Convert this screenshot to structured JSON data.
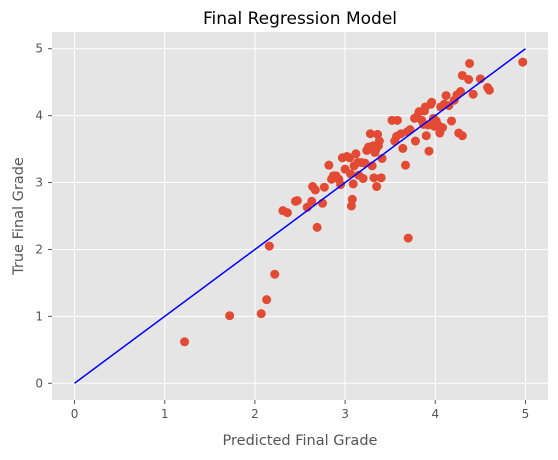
{
  "chart_data": {
    "type": "scatter",
    "title": "Final Regression Model",
    "xlabel": "Predicted Final Grade",
    "ylabel": "True Final Grade",
    "xlim": [
      -0.25,
      5.25
    ],
    "ylim": [
      -0.25,
      5.25
    ],
    "x_ticks": [
      0,
      1,
      2,
      3,
      4,
      5
    ],
    "y_ticks": [
      0,
      1,
      2,
      3,
      4,
      5
    ],
    "grid": true,
    "style": "ggplot",
    "colors": {
      "background": "#E5E5E5",
      "grid": "#FFFFFF",
      "points": "#E24A33",
      "line": "#0000FF"
    },
    "line": {
      "name": "y = x",
      "x": [
        0,
        5
      ],
      "y": [
        0,
        5
      ]
    },
    "points": [
      [
        1.22,
        0.62
      ],
      [
        1.72,
        1.01
      ],
      [
        2.07,
        1.04
      ],
      [
        2.13,
        1.25
      ],
      [
        2.16,
        2.05
      ],
      [
        2.22,
        1.63
      ],
      [
        2.31,
        2.58
      ],
      [
        2.36,
        2.55
      ],
      [
        2.45,
        2.72
      ],
      [
        2.47,
        2.73
      ],
      [
        2.58,
        2.63
      ],
      [
        2.63,
        2.72
      ],
      [
        2.64,
        2.94
      ],
      [
        2.67,
        2.89
      ],
      [
        2.69,
        2.33
      ],
      [
        2.75,
        2.69
      ],
      [
        2.77,
        2.93
      ],
      [
        2.82,
        3.26
      ],
      [
        2.85,
        3.05
      ],
      [
        2.87,
        3.1
      ],
      [
        2.9,
        3.1
      ],
      [
        2.93,
        3.05
      ],
      [
        2.95,
        2.97
      ],
      [
        2.97,
        3.37
      ],
      [
        3.0,
        3.2
      ],
      [
        3.02,
        3.39
      ],
      [
        3.05,
        3.37
      ],
      [
        3.06,
        3.13
      ],
      [
        3.07,
        2.65
      ],
      [
        3.08,
        2.75
      ],
      [
        3.09,
        2.98
      ],
      [
        3.1,
        3.25
      ],
      [
        3.12,
        3.43
      ],
      [
        3.14,
        3.3
      ],
      [
        3.15,
        3.11
      ],
      [
        3.18,
        3.3
      ],
      [
        3.2,
        3.06
      ],
      [
        3.22,
        3.29
      ],
      [
        3.24,
        3.48
      ],
      [
        3.26,
        3.53
      ],
      [
        3.28,
        3.73
      ],
      [
        3.3,
        3.25
      ],
      [
        3.31,
        3.55
      ],
      [
        3.32,
        3.07
      ],
      [
        3.33,
        3.45
      ],
      [
        3.34,
        3.49
      ],
      [
        3.35,
        2.94
      ],
      [
        3.36,
        3.72
      ],
      [
        3.37,
        3.55
      ],
      [
        3.38,
        3.62
      ],
      [
        3.4,
        3.07
      ],
      [
        3.41,
        3.36
      ],
      [
        3.52,
        3.93
      ],
      [
        3.55,
        3.62
      ],
      [
        3.57,
        3.69
      ],
      [
        3.58,
        3.93
      ],
      [
        3.62,
        3.73
      ],
      [
        3.64,
        3.51
      ],
      [
        3.67,
        3.26
      ],
      [
        3.69,
        3.76
      ],
      [
        3.7,
        2.17
      ],
      [
        3.72,
        3.79
      ],
      [
        3.77,
        3.96
      ],
      [
        3.78,
        3.62
      ],
      [
        3.8,
        3.99
      ],
      [
        3.82,
        4.06
      ],
      [
        3.85,
        3.93
      ],
      [
        3.87,
        3.87
      ],
      [
        3.88,
        4.07
      ],
      [
        3.89,
        4.13
      ],
      [
        3.9,
        3.7
      ],
      [
        3.92,
        3.86
      ],
      [
        3.93,
        3.47
      ],
      [
        3.95,
        4.17
      ],
      [
        3.96,
        4.2
      ],
      [
        3.98,
        3.96
      ],
      [
        3.99,
        3.84
      ],
      [
        4.01,
        3.92
      ],
      [
        4.03,
        3.86
      ],
      [
        4.05,
        3.74
      ],
      [
        4.06,
        4.13
      ],
      [
        4.08,
        3.82
      ],
      [
        4.1,
        4.17
      ],
      [
        4.12,
        4.3
      ],
      [
        4.15,
        4.15
      ],
      [
        4.18,
        3.92
      ],
      [
        4.21,
        4.23
      ],
      [
        4.24,
        4.31
      ],
      [
        4.26,
        3.74
      ],
      [
        4.28,
        4.36
      ],
      [
        4.3,
        3.7
      ],
      [
        4.3,
        4.6
      ],
      [
        4.37,
        4.54
      ],
      [
        4.38,
        4.78
      ],
      [
        4.42,
        4.32
      ],
      [
        4.5,
        4.55
      ],
      [
        4.58,
        4.42
      ],
      [
        4.6,
        4.38
      ],
      [
        4.97,
        4.8
      ]
    ]
  }
}
